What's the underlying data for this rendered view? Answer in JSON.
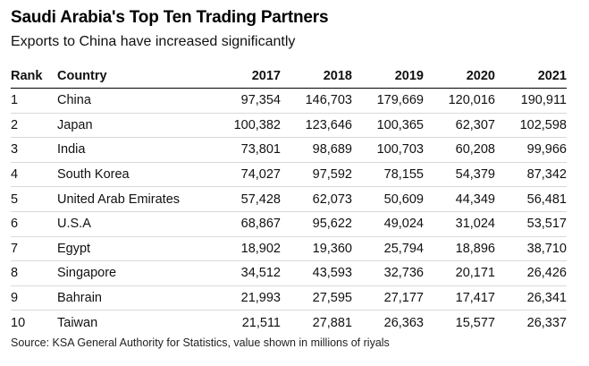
{
  "chart_data": {
    "type": "table",
    "title": "Saudi Arabia's Top Ten Trading Partners",
    "subtitle": "Exports to China have increased significantly",
    "columns": [
      "Rank",
      "Country",
      "2017",
      "2018",
      "2019",
      "2020",
      "2021"
    ],
    "rows": [
      [
        "1",
        "China",
        "97,354",
        "146,703",
        "179,669",
        "120,016",
        "190,911"
      ],
      [
        "2",
        "Japan",
        "100,382",
        "123,646",
        "100,365",
        "62,307",
        "102,598"
      ],
      [
        "3",
        "India",
        "73,801",
        "98,689",
        "100,703",
        "60,208",
        "99,966"
      ],
      [
        "4",
        "South Korea",
        "74,027",
        "97,592",
        "78,155",
        "54,379",
        "87,342"
      ],
      [
        "5",
        "United Arab Emirates",
        "57,428",
        "62,073",
        "50,609",
        "44,349",
        "56,481"
      ],
      [
        "6",
        "U.S.A",
        "68,867",
        "95,622",
        "49,024",
        "31,024",
        "53,517"
      ],
      [
        "7",
        "Egypt",
        "18,902",
        "19,360",
        "25,794",
        "18,896",
        "38,710"
      ],
      [
        "8",
        "Singapore",
        "34,512",
        "43,593",
        "32,736",
        "20,171",
        "26,426"
      ],
      [
        "9",
        "Bahrain",
        "21,993",
        "27,595",
        "27,177",
        "17,417",
        "26,341"
      ],
      [
        "10",
        "Taiwan",
        "21,511",
        "27,881",
        "26,363",
        "15,577",
        "26,337"
      ]
    ],
    "source": "Source: KSA General Authority for Statistics, value shown in millions of riyals"
  }
}
